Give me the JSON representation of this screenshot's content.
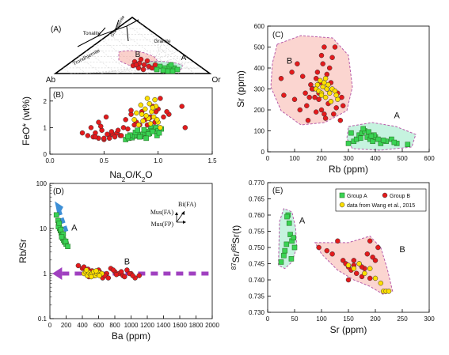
{
  "chart_data": [
    {
      "id": "A",
      "type": "ternary",
      "panel_label": "(A)",
      "corner_labels": {
        "left": "Ab",
        "right": "Or"
      },
      "field_labels": [
        "Tonalite",
        "Granodiorite",
        "Granite",
        "Trondhjemite"
      ],
      "group_labels": [
        "B",
        "A"
      ]
    },
    {
      "id": "B",
      "type": "scatter",
      "panel_label": "(B)",
      "xlabel": "Na2O/K2O",
      "ylabel": "FeO* (wt%)",
      "xlim": [
        0,
        1.5
      ],
      "ylim": [
        0,
        2.5
      ],
      "xticks": [
        0,
        0.5,
        1.0,
        1.5
      ],
      "xtick_labels": [
        "0.0",
        "0.5",
        "1.0",
        "1.5"
      ],
      "yticks": [
        0,
        1,
        2
      ],
      "series": [
        {
          "marker": "square",
          "color": "#39d353",
          "x": [
            0.7,
            0.73,
            0.76,
            0.78,
            0.8,
            0.82,
            0.84,
            0.86,
            0.88,
            0.9,
            0.92,
            0.94,
            0.96,
            0.98,
            1.0,
            0.74,
            0.79,
            0.83,
            0.87,
            0.91,
            0.95,
            0.99,
            1.03,
            0.72,
            0.81,
            0.89,
            0.93,
            1.01
          ],
          "y": [
            0.55,
            0.6,
            0.62,
            0.68,
            0.7,
            0.72,
            0.66,
            0.75,
            0.8,
            0.85,
            0.78,
            0.9,
            0.95,
            1.0,
            0.88,
            0.72,
            0.82,
            0.65,
            0.92,
            0.76,
            0.85,
            0.7,
            0.95,
            0.66,
            0.9,
            0.6,
            1.05,
            0.8
          ]
        },
        {
          "marker": "circle",
          "color": "#e41a1c",
          "x": [
            0.35,
            0.4,
            0.42,
            0.45,
            0.48,
            0.5,
            0.52,
            0.55,
            0.58,
            0.6,
            0.45,
            0.38,
            0.62,
            0.65,
            0.55,
            0.7,
            0.75,
            0.8,
            0.85,
            0.9,
            0.95,
            1.0,
            1.05,
            1.1,
            0.3,
            0.42,
            0.5,
            0.68,
            0.72,
            0.78,
            0.88,
            0.92,
            0.98,
            1.02,
            1.25,
            1.22,
            0.57,
            0.63,
            0.47,
            0.53,
            0.83,
            0.93,
            0.97,
            1.08,
            0.75,
            0.66
          ],
          "y": [
            0.7,
            0.65,
            0.8,
            0.6,
            0.9,
            0.55,
            1.4,
            0.7,
            0.75,
            0.65,
            1.2,
            1.0,
            0.8,
            0.7,
            0.6,
            1.3,
            1.5,
            1.2,
            1.6,
            1.1,
            1.8,
            1.7,
            1.4,
            1.5,
            0.8,
            0.65,
            0.6,
            1.0,
            0.95,
            1.1,
            1.3,
            1.35,
            1.6,
            2.1,
            1.0,
            1.8,
            0.85,
            0.9,
            1.05,
            0.75,
            1.1,
            1.4,
            1.2,
            1.6,
            1.65,
            0.7
          ]
        },
        {
          "marker": "circle",
          "color": "#ffe000",
          "x": [
            0.78,
            0.82,
            0.85,
            0.88,
            0.9,
            0.92,
            0.94,
            0.96,
            0.98,
            1.0,
            1.02,
            0.86,
            0.91,
            0.97,
            0.8,
            0.84,
            0.89,
            0.93,
            0.95,
            0.99
          ],
          "y": [
            1.3,
            1.1,
            1.5,
            1.7,
            2.1,
            1.9,
            1.6,
            1.4,
            1.8,
            1.2,
            1.0,
            1.25,
            1.35,
            2.05,
            1.55,
            1.85,
            1.45,
            1.15,
            1.75,
            1.3
          ]
        }
      ]
    },
    {
      "id": "C",
      "type": "scatter",
      "panel_label": "(C)",
      "xlabel": "Rb (ppm)",
      "ylabel": "Sr (ppm)",
      "xlim": [
        0,
        600
      ],
      "ylim": [
        0,
        600
      ],
      "xticks": [
        0,
        100,
        200,
        300,
        400,
        500,
        600
      ],
      "yticks": [
        0,
        100,
        200,
        300,
        400,
        500,
        600
      ],
      "group_labels": [
        "B",
        "A"
      ],
      "series": [
        {
          "marker": "square",
          "color": "#39d353",
          "x": [
            300,
            320,
            330,
            340,
            350,
            360,
            370,
            380,
            390,
            400,
            410,
            420,
            440,
            460,
            480,
            520,
            310,
            355,
            375,
            395,
            430,
            470,
            345,
            385
          ],
          "y": [
            40,
            50,
            60,
            80,
            90,
            100,
            70,
            60,
            50,
            70,
            60,
            40,
            50,
            60,
            40,
            35,
            90,
            110,
            95,
            80,
            55,
            45,
            65,
            75
          ]
        },
        {
          "marker": "circle",
          "color": "#e41a1c",
          "x": [
            100,
            120,
            140,
            150,
            160,
            170,
            180,
            190,
            200,
            210,
            220,
            230,
            240,
            250,
            260,
            130,
            145,
            175,
            185,
            205,
            215,
            235,
            255,
            270,
            280,
            50,
            90,
            110,
            60,
            200,
            195,
            225,
            245,
            165,
            155,
            210,
            235,
            180,
            275,
            190,
            220
          ],
          "y": [
            250,
            200,
            280,
            150,
            320,
            300,
            350,
            250,
            200,
            180,
            300,
            400,
            450,
            500,
            280,
            360,
            220,
            260,
            380,
            420,
            160,
            240,
            210,
            150,
            220,
            350,
            380,
            420,
            270,
            460,
            330,
            230,
            180,
            300,
            260,
            500,
            330,
            190,
            260,
            280,
            370
          ]
        },
        {
          "marker": "circle",
          "color": "#ffe000",
          "x": [
            180,
            185,
            190,
            195,
            200,
            205,
            210,
            215,
            220,
            225,
            230,
            240,
            250,
            260,
            200,
            215,
            235,
            255
          ],
          "y": [
            300,
            320,
            290,
            340,
            280,
            310,
            330,
            260,
            300,
            320,
            280,
            300,
            290,
            250,
            270,
            350,
            240,
            270
          ]
        }
      ]
    },
    {
      "id": "D",
      "type": "scatter",
      "panel_label": "(D)",
      "xlabel": "Ba (ppm)",
      "ylabel": "Rb/Sr",
      "xlim": [
        0,
        2000
      ],
      "ylim": [
        0.1,
        100
      ],
      "yscale": "log",
      "xticks": [
        0,
        200,
        400,
        600,
        800,
        1000,
        1200,
        1400,
        1600,
        1800,
        2000
      ],
      "ytick_labels": [
        "0.1",
        "1",
        "10",
        "100"
      ],
      "vector_labels": [
        "Bi(FA)",
        "Mus(FA)",
        "Mus(FP)"
      ],
      "group_labels": [
        "A",
        "B"
      ],
      "series": [
        {
          "marker": "square",
          "color": "#39d353",
          "x": [
            80,
            100,
            110,
            120,
            130,
            140,
            150,
            160,
            170,
            180,
            200,
            220,
            105,
            135,
            165,
            195,
            115,
            145
          ],
          "y": [
            20,
            15,
            12,
            10,
            9,
            8,
            7,
            6,
            5.5,
            5,
            4.5,
            4,
            11,
            9.5,
            7.5,
            5.2,
            13,
            6.5
          ]
        },
        {
          "marker": "circle",
          "color": "#e41a1c",
          "x": [
            350,
            400,
            450,
            500,
            550,
            600,
            650,
            700,
            750,
            800,
            850,
            900,
            950,
            1000,
            1050,
            1100,
            420,
            480,
            520,
            580,
            620,
            680,
            720,
            780,
            820,
            880,
            920,
            980,
            1020,
            470
          ],
          "y": [
            1.5,
            1.3,
            1.1,
            1.0,
            0.9,
            1.2,
            0.8,
            1.0,
            1.3,
            1.1,
            1.0,
            0.9,
            1.2,
            1.0,
            0.8,
            0.9,
            1.4,
            0.85,
            1.15,
            0.95,
            1.05,
            0.9,
            0.8,
            1.2,
            0.95,
            1.1,
            0.85,
            1.0,
            0.9,
            1.25
          ]
        },
        {
          "marker": "circle",
          "color": "#ffe000",
          "x": [
            420,
            440,
            460,
            480,
            500,
            520,
            540,
            560,
            580,
            600,
            620,
            640,
            450,
            510,
            570,
            610
          ],
          "y": [
            1.0,
            1.1,
            0.9,
            1.05,
            0.95,
            1.0,
            1.1,
            0.9,
            1.0,
            1.05,
            0.95,
            1.0,
            1.2,
            0.85,
            1.15,
            0.9
          ]
        }
      ]
    },
    {
      "id": "E",
      "type": "scatter",
      "panel_label": "(E)",
      "xlabel": "Sr (ppm)",
      "ylabel": "87Sr/86Sr(t)",
      "xlim": [
        0,
        300
      ],
      "ylim": [
        0.73,
        0.77
      ],
      "xticks": [
        0,
        50,
        100,
        150,
        200,
        250,
        300
      ],
      "yticks": [
        0.73,
        0.735,
        0.74,
        0.745,
        0.75,
        0.755,
        0.76,
        0.765,
        0.77
      ],
      "ytick_labels": [
        "0.730",
        "0.735",
        "0.740",
        "0.745",
        "0.750",
        "0.755",
        "0.760",
        "0.765",
        "0.770"
      ],
      "group_labels": [
        "A",
        "B"
      ],
      "legend": [
        "Group A",
        "Group B",
        "data from Wang et al., 2015"
      ],
      "legend_position": "top-right",
      "series": [
        {
          "name": "Group A",
          "marker": "square",
          "color": "#39d353",
          "x": [
            25,
            30,
            32,
            35,
            38,
            40,
            42,
            45,
            48,
            50,
            36,
            44
          ],
          "y": [
            0.7455,
            0.7475,
            0.749,
            0.751,
            0.76,
            0.7575,
            0.754,
            0.752,
            0.753,
            0.75,
            0.7595,
            0.7465
          ]
        },
        {
          "name": "Group B",
          "marker": "circle",
          "color": "#e41a1c",
          "x": [
            95,
            110,
            120,
            130,
            140,
            145,
            150,
            155,
            160,
            165,
            170,
            175,
            180,
            185,
            190,
            195,
            200,
            205,
            150,
            160,
            175,
            190
          ],
          "y": [
            0.75,
            0.749,
            0.748,
            0.752,
            0.746,
            0.745,
            0.744,
            0.743,
            0.746,
            0.742,
            0.745,
            0.741,
            0.7435,
            0.748,
            0.752,
            0.747,
            0.746,
            0.75,
            0.74,
            0.7445,
            0.744,
            0.7405
          ]
        },
        {
          "name": "data from Wang et al., 2015",
          "marker": "circle",
          "color": "#ffe000",
          "x": [
            150,
            160,
            170,
            180,
            190,
            200,
            210,
            215,
            220,
            225
          ],
          "y": [
            0.7445,
            0.7435,
            0.745,
            0.742,
            0.7435,
            0.7405,
            0.739,
            0.7365,
            0.7365,
            0.7365
          ]
        }
      ]
    }
  ]
}
